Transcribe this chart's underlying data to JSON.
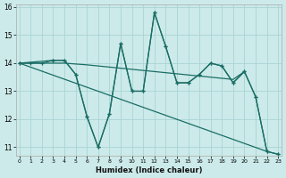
{
  "xlabel": "Humidex (Indice chaleur)",
  "background_color": "#cceaea",
  "grid_color": "#aad4d4",
  "line_color": "#1a6e65",
  "xlim": [
    0,
    23
  ],
  "ylim": [
    10.7,
    16.1
  ],
  "xticks": [
    0,
    1,
    2,
    3,
    4,
    5,
    6,
    7,
    8,
    9,
    10,
    11,
    12,
    13,
    14,
    15,
    16,
    17,
    18,
    19,
    20,
    21,
    22,
    23
  ],
  "yticks": [
    11,
    12,
    13,
    14,
    15,
    16
  ],
  "curve1": {
    "x": [
      0,
      1,
      2,
      3,
      4,
      5,
      6,
      7,
      8,
      9,
      10,
      11,
      12,
      13,
      14,
      15,
      16,
      17,
      18,
      19,
      20,
      21,
      22,
      23
    ],
    "y": [
      14.0,
      14.0,
      14.0,
      14.1,
      14.1,
      13.6,
      12.1,
      11.0,
      12.2,
      14.7,
      13.0,
      13.0,
      15.8,
      14.6,
      13.3,
      13.3,
      13.6,
      14.0,
      13.9,
      13.3,
      13.7,
      12.8,
      10.85,
      10.75
    ],
    "markers": true
  },
  "curve2": {
    "x": [
      0,
      22
    ],
    "y": [
      14.0,
      10.85
    ],
    "markers": false
  },
  "curve3": {
    "x": [
      0,
      1,
      2,
      3,
      4,
      5,
      6,
      7,
      8,
      9,
      10,
      11,
      12,
      13,
      14,
      15,
      16,
      17,
      18,
      19,
      20
    ],
    "y": [
      14.0,
      14.0,
      14.0,
      14.0,
      14.0,
      13.97,
      13.94,
      13.9,
      13.86,
      13.82,
      13.78,
      13.74,
      13.7,
      13.66,
      13.62,
      13.58,
      13.54,
      13.5,
      13.46,
      13.42,
      13.7
    ],
    "markers": false
  },
  "curve4": {
    "x": [
      0,
      3,
      4,
      5,
      6,
      7,
      8,
      9,
      10,
      11,
      12,
      13,
      14,
      15,
      16,
      17,
      18,
      19,
      20,
      21,
      22,
      23
    ],
    "y": [
      14.0,
      14.1,
      14.1,
      13.6,
      12.1,
      11.0,
      12.2,
      14.7,
      13.0,
      13.0,
      15.8,
      14.6,
      13.3,
      13.3,
      13.6,
      14.0,
      13.9,
      13.3,
      13.7,
      12.8,
      10.85,
      10.75
    ],
    "markers": true
  }
}
